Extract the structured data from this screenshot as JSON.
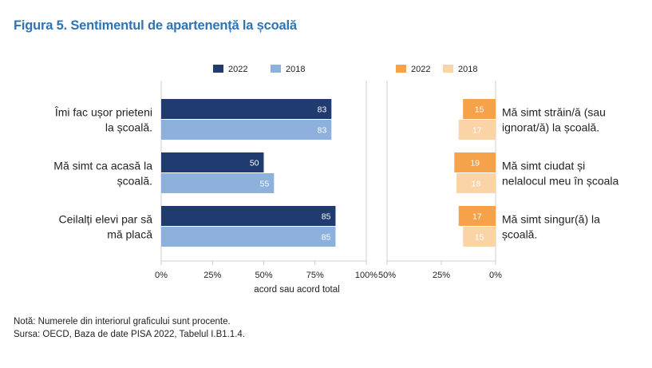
{
  "title": "Figura 5. Sentimentul de apartenență la școală",
  "notes": {
    "note": "Notă: Numerele din interiorul graficului sunt procente.",
    "source": "Sursa: OECD, Baza de date PISA 2022, Tabelul I.B1.1.4."
  },
  "colors": {
    "left_2022": "#1f3b70",
    "left_2018": "#8db0dc",
    "right_2022": "#f5a24a",
    "right_2018": "#fad3a6",
    "axis": "#cfcfcf",
    "title": "#2e74b5"
  },
  "chart_data": [
    {
      "type": "bar",
      "orientation": "horizontal",
      "categories": [
        [
          "Îmi fac ușor prieteni",
          "la școală."
        ],
        [
          "Mă simt ca acasă la",
          "școală."
        ],
        [
          "Ceilalți elevi par să",
          "mă placă"
        ]
      ],
      "series": [
        {
          "name": "2022",
          "values": [
            83,
            50,
            85
          ]
        },
        {
          "name": "2018",
          "values": [
            83,
            55,
            85
          ]
        }
      ],
      "xlim": [
        0,
        100
      ],
      "xticks": [
        "0%",
        "25%",
        "50%",
        "75%",
        "100%"
      ],
      "xlabel": "acord sau acord total",
      "legend": "top"
    },
    {
      "type": "bar",
      "orientation": "horizontal",
      "direction": "reversed",
      "categories": [
        [
          "Mă simt străin/ă (sau",
          "ignorat/ă) la școală."
        ],
        [
          "Mă simt ciudat și",
          "nelalocul meu în școala"
        ],
        [
          "Mă simt singur(ă) la",
          "școală."
        ]
      ],
      "series": [
        {
          "name": "2022",
          "values": [
            15,
            19,
            17
          ]
        },
        {
          "name": "2018",
          "values": [
            17,
            18,
            15
          ]
        }
      ],
      "xlim": [
        0,
        50
      ],
      "xticks": [
        "50%",
        "25%",
        "0%"
      ],
      "legend": "top"
    }
  ]
}
